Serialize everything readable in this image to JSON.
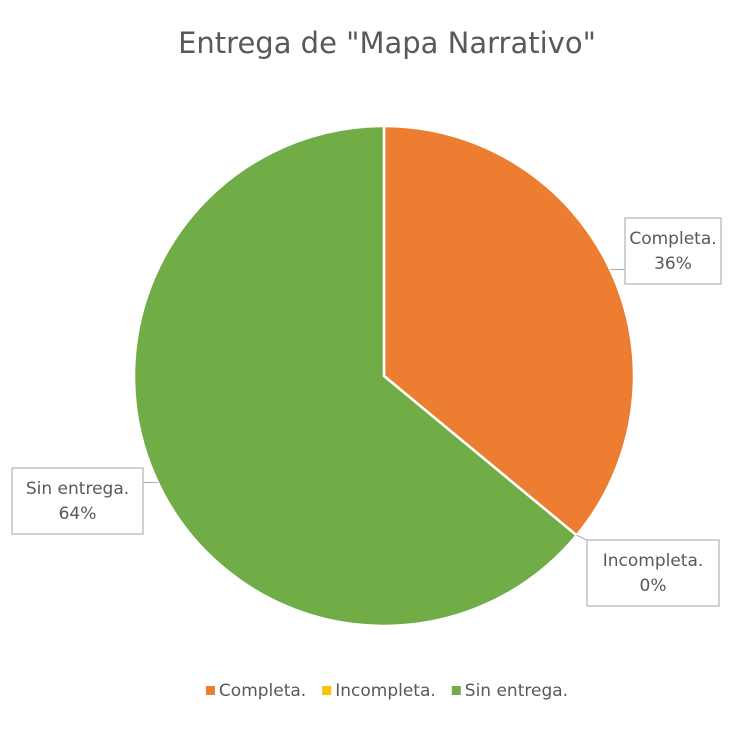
{
  "chart_data": {
    "type": "pie",
    "title": "Entrega de \"Mapa Narrativo\"",
    "categories": [
      "Completa.",
      "Incompleta.",
      "Sin entrega."
    ],
    "values": [
      36,
      0,
      64
    ],
    "value_labels": [
      "36%",
      "0%",
      "64%"
    ],
    "colors": [
      "#ed7d31",
      "#ffc000",
      "#70ad47"
    ],
    "legend": "bottom"
  }
}
